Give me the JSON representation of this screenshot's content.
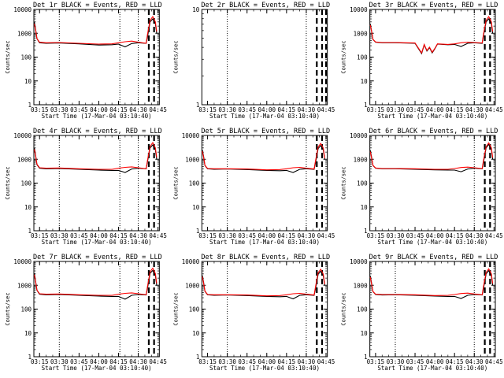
{
  "chart_data": [
    {
      "type": "line",
      "title": "Det 1r BLACK = Events, RED = LLD",
      "xlabel": "Start Time (17-Mar-04 03:10:40)",
      "ylabel": "Counts/sec",
      "yscale": "log",
      "ylim": [
        1,
        10000
      ],
      "yticks": [
        "1",
        "10",
        "100",
        "1000",
        "10000"
      ],
      "xticks": [
        "03:15",
        "03:30",
        "03:45",
        "04:00",
        "04:15",
        "04:30",
        "04:45"
      ],
      "dotted_lines": [
        "03:30",
        "04:16",
        "04:30"
      ],
      "dashed_lines": [
        "04:38",
        "04:42"
      ],
      "series": [
        {
          "color": "#000000",
          "x": [
            "03:11",
            "03:12",
            "03:13",
            "03:15",
            "03:20",
            "03:30",
            "03:45",
            "04:00",
            "04:10",
            "04:15",
            "04:20",
            "04:25",
            "04:30",
            "04:36",
            "04:37",
            "04:39",
            "04:41",
            "04:43",
            "04:44"
          ],
          "y": [
            3000,
            1500,
            600,
            400,
            380,
            390,
            360,
            320,
            330,
            350,
            270,
            370,
            400,
            380,
            700,
            3000,
            4000,
            2500,
            1000
          ]
        },
        {
          "color": "#ff0000",
          "x": [
            "03:11",
            "03:12",
            "03:13",
            "03:15",
            "03:20",
            "03:30",
            "03:45",
            "04:00",
            "04:10",
            "04:15",
            "04:20",
            "04:25",
            "04:30",
            "04:36",
            "04:37",
            "04:39",
            "04:41",
            "04:43",
            "04:44"
          ],
          "y": [
            2500,
            1400,
            600,
            420,
            400,
            410,
            380,
            350,
            360,
            400,
            440,
            470,
            420,
            380,
            900,
            3500,
            5000,
            3000,
            1200
          ]
        }
      ]
    },
    {
      "type": "line",
      "title": "Det 2r BLACK = Events, RED = LLD",
      "xlabel": "Start Time (17-Mar-04 03:10:40)",
      "ylabel": "Counts/sec",
      "yscale": "log",
      "ylim": [
        1,
        10
      ],
      "yticks": [
        "1",
        "10"
      ],
      "xticks": [
        "03:15",
        "03:30",
        "03:45",
        "04:00",
        "04:15",
        "04:30",
        "04:45"
      ],
      "dotted_lines": [
        "03:30",
        "04:30"
      ],
      "dashed_lines": [
        "04:38",
        "04:42",
        "04:45"
      ],
      "series": []
    },
    {
      "type": "line",
      "title": "Det 3r BLACK = Events, RED = LLD",
      "xlabel": "Start Time (17-Mar-04 03:10:40)",
      "ylabel": "Counts/sec",
      "yscale": "log",
      "ylim": [
        1,
        10000
      ],
      "yticks": [
        "1",
        "10",
        "100",
        "1000",
        "10000"
      ],
      "xticks": [
        "03:15",
        "03:30",
        "03:45",
        "04:00",
        "04:15",
        "04:30",
        "04:45"
      ],
      "dotted_lines": [
        "04:30"
      ],
      "dashed_lines": [
        "04:38",
        "04:42"
      ],
      "series": [
        {
          "color": "#000000",
          "x": [
            "03:11",
            "03:12",
            "03:13",
            "03:15",
            "03:20",
            "03:30",
            "03:45",
            "03:50",
            "03:52",
            "03:54",
            "03:56",
            "03:58",
            "04:00",
            "04:02",
            "04:10",
            "04:15",
            "04:20",
            "04:25",
            "04:30",
            "04:36",
            "04:37",
            "04:39",
            "04:41",
            "04:43",
            "04:44"
          ],
          "y": [
            2500,
            1200,
            550,
            420,
            400,
            400,
            380,
            140,
            330,
            180,
            250,
            150,
            220,
            350,
            330,
            340,
            280,
            380,
            400,
            380,
            800,
            3000,
            4000,
            2500,
            1000
          ]
        },
        {
          "color": "#ff0000",
          "x": [
            "03:11",
            "03:12",
            "03:13",
            "03:15",
            "03:20",
            "03:30",
            "03:45",
            "03:50",
            "03:52",
            "03:54",
            "03:56",
            "03:58",
            "04:00",
            "04:02",
            "04:10",
            "04:15",
            "04:20",
            "04:25",
            "04:30",
            "04:36",
            "04:37",
            "04:39",
            "04:41",
            "04:43",
            "04:44"
          ],
          "y": [
            2200,
            1200,
            560,
            430,
            410,
            410,
            390,
            150,
            340,
            190,
            260,
            160,
            230,
            360,
            340,
            360,
            400,
            420,
            410,
            390,
            900,
            3500,
            5000,
            3000,
            1200
          ]
        }
      ]
    },
    {
      "type": "line",
      "title": "Det 4r BLACK = Events, RED = LLD",
      "xlabel": "Start Time (17-Mar-04 03:10:40)",
      "ylabel": "Counts/sec",
      "yscale": "log",
      "ylim": [
        1,
        10000
      ],
      "yticks": [
        "1",
        "10",
        "100",
        "1000",
        "10000"
      ],
      "xticks": [
        "03:15",
        "03:30",
        "03:45",
        "04:00",
        "04:15",
        "04:30",
        "04:45"
      ],
      "dotted_lines": [
        "03:30",
        "04:16",
        "04:30"
      ],
      "dashed_lines": [
        "04:38",
        "04:42"
      ],
      "series": [
        {
          "color": "#000000",
          "x": [
            "03:11",
            "03:12",
            "03:13",
            "03:15",
            "03:20",
            "03:30",
            "03:45",
            "04:00",
            "04:10",
            "04:15",
            "04:20",
            "04:25",
            "04:30",
            "04:36",
            "04:37",
            "04:39",
            "04:41",
            "04:43",
            "04:44"
          ],
          "y": [
            3000,
            1500,
            600,
            420,
            400,
            410,
            380,
            350,
            340,
            340,
            280,
            390,
            420,
            400,
            800,
            3000,
            4000,
            2500,
            1000
          ]
        },
        {
          "color": "#ff0000",
          "x": [
            "03:11",
            "03:12",
            "03:13",
            "03:15",
            "03:20",
            "03:30",
            "03:45",
            "04:00",
            "04:10",
            "04:15",
            "04:20",
            "04:25",
            "04:30",
            "04:36",
            "04:37",
            "04:39",
            "04:41",
            "04:43",
            "04:44"
          ],
          "y": [
            2600,
            1400,
            620,
            440,
            420,
            430,
            400,
            380,
            380,
            420,
            460,
            480,
            440,
            400,
            900,
            3500,
            5000,
            3000,
            1200
          ]
        }
      ]
    },
    {
      "type": "line",
      "title": "Det 5r BLACK = Events, RED = LLD",
      "xlabel": "Start Time (17-Mar-04 03:10:40)",
      "ylabel": "Counts/sec",
      "yscale": "log",
      "ylim": [
        1,
        10000
      ],
      "yticks": [
        "1",
        "10",
        "100",
        "1000",
        "10000"
      ],
      "xticks": [
        "03:15",
        "03:30",
        "03:45",
        "04:00",
        "04:15",
        "04:30",
        "04:45"
      ],
      "dotted_lines": [
        "03:30",
        "04:30"
      ],
      "dashed_lines": [
        "04:38",
        "04:42"
      ],
      "series": [
        {
          "color": "#000000",
          "x": [
            "03:11",
            "03:12",
            "03:13",
            "03:15",
            "03:20",
            "03:30",
            "03:45",
            "04:00",
            "04:10",
            "04:15",
            "04:20",
            "04:25",
            "04:30",
            "04:36",
            "04:37",
            "04:39",
            "04:41",
            "04:43",
            "04:44"
          ],
          "y": [
            2500,
            1300,
            550,
            400,
            380,
            390,
            370,
            340,
            330,
            340,
            280,
            380,
            400,
            380,
            700,
            2800,
            3800,
            2400,
            1000
          ]
        },
        {
          "color": "#ff0000",
          "x": [
            "03:11",
            "03:12",
            "03:13",
            "03:15",
            "03:20",
            "03:30",
            "03:45",
            "04:00",
            "04:10",
            "04:15",
            "04:20",
            "04:25",
            "04:30",
            "04:36",
            "04:37",
            "04:39",
            "04:41",
            "04:43",
            "04:44"
          ],
          "y": [
            2200,
            1200,
            560,
            410,
            400,
            400,
            390,
            360,
            370,
            400,
            440,
            460,
            420,
            390,
            850,
            3300,
            4600,
            2900,
            1100
          ]
        }
      ]
    },
    {
      "type": "line",
      "title": "Det 6r BLACK = Events, RED = LLD",
      "xlabel": "Start Time (17-Mar-04 03:10:40)",
      "ylabel": "Counts/sec",
      "yscale": "log",
      "ylim": [
        1,
        10000
      ],
      "yticks": [
        "1",
        "10",
        "100",
        "1000",
        "10000"
      ],
      "xticks": [
        "03:15",
        "03:30",
        "03:45",
        "04:00",
        "04:15",
        "04:30",
        "04:45"
      ],
      "dotted_lines": [
        "04:30"
      ],
      "dashed_lines": [
        "04:38",
        "04:42"
      ],
      "series": [
        {
          "color": "#000000",
          "x": [
            "03:11",
            "03:12",
            "03:13",
            "03:15",
            "03:20",
            "03:30",
            "03:45",
            "04:00",
            "04:10",
            "04:15",
            "04:20",
            "04:25",
            "04:30",
            "04:36",
            "04:37",
            "04:39",
            "04:41",
            "04:43",
            "04:44"
          ],
          "y": [
            2400,
            1200,
            550,
            420,
            400,
            400,
            380,
            360,
            350,
            350,
            300,
            390,
            420,
            400,
            750,
            3000,
            4200,
            2600,
            1000
          ]
        },
        {
          "color": "#ff0000",
          "x": [
            "03:11",
            "03:12",
            "03:13",
            "03:15",
            "03:20",
            "03:30",
            "03:45",
            "04:00",
            "04:10",
            "04:15",
            "04:20",
            "04:25",
            "04:30",
            "04:36",
            "04:37",
            "04:39",
            "04:41",
            "04:43",
            "04:44"
          ],
          "y": [
            2100,
            1100,
            560,
            430,
            410,
            410,
            400,
            380,
            380,
            410,
            450,
            470,
            440,
            410,
            880,
            3400,
            4900,
            3000,
            1200
          ]
        }
      ]
    },
    {
      "type": "line",
      "title": "Det 7r BLACK = Events, RED = LLD",
      "xlabel": "Start Time (17-Mar-04 03:10:40)",
      "ylabel": "Counts/sec",
      "yscale": "log",
      "ylim": [
        1,
        10000
      ],
      "yticks": [
        "1",
        "10",
        "100",
        "1000",
        "10000"
      ],
      "xticks": [
        "03:15",
        "03:30",
        "03:45",
        "04:00",
        "04:15",
        "04:30",
        "04:45"
      ],
      "dotted_lines": [
        "03:30",
        "04:16",
        "04:30"
      ],
      "dashed_lines": [
        "04:38",
        "04:42"
      ],
      "series": [
        {
          "color": "#000000",
          "x": [
            "03:11",
            "03:12",
            "03:13",
            "03:15",
            "03:20",
            "03:30",
            "03:45",
            "04:00",
            "04:10",
            "04:15",
            "04:20",
            "04:25",
            "04:30",
            "04:36",
            "04:37",
            "04:39",
            "04:41",
            "04:43",
            "04:44"
          ],
          "y": [
            3200,
            1500,
            620,
            420,
            400,
            410,
            380,
            350,
            340,
            340,
            260,
            380,
            410,
            390,
            750,
            3200,
            4200,
            2600,
            1000
          ]
        },
        {
          "color": "#ff0000",
          "x": [
            "03:11",
            "03:12",
            "03:13",
            "03:15",
            "03:20",
            "03:30",
            "03:45",
            "04:00",
            "04:10",
            "04:15",
            "04:20",
            "04:25",
            "04:30",
            "04:36",
            "04:37",
            "04:39",
            "04:41",
            "04:43",
            "04:44"
          ],
          "y": [
            2800,
            1400,
            630,
            440,
            420,
            430,
            400,
            380,
            380,
            420,
            460,
            480,
            440,
            400,
            900,
            3700,
            5200,
            3100,
            1200
          ]
        }
      ]
    },
    {
      "type": "line",
      "title": "Det 8r BLACK = Events, RED = LLD",
      "xlabel": "Start Time (17-Mar-04 03:10:40)",
      "ylabel": "Counts/sec",
      "yscale": "log",
      "ylim": [
        1,
        10000
      ],
      "yticks": [
        "1",
        "10",
        "100",
        "1000",
        "10000"
      ],
      "xticks": [
        "03:15",
        "03:30",
        "03:45",
        "04:00",
        "04:15",
        "04:30",
        "04:45"
      ],
      "dotted_lines": [
        "03:30",
        "04:30"
      ],
      "dashed_lines": [
        "04:38",
        "04:42"
      ],
      "series": [
        {
          "color": "#000000",
          "x": [
            "03:11",
            "03:12",
            "03:13",
            "03:15",
            "03:20",
            "03:30",
            "03:45",
            "04:00",
            "04:10",
            "04:15",
            "04:20",
            "04:25",
            "04:30",
            "04:36",
            "04:37",
            "04:39",
            "04:41",
            "04:43",
            "04:44"
          ],
          "y": [
            2600,
            1300,
            560,
            400,
            380,
            390,
            370,
            340,
            330,
            340,
            270,
            380,
            400,
            380,
            700,
            2900,
            3900,
            2400,
            1000
          ]
        },
        {
          "color": "#ff0000",
          "x": [
            "03:11",
            "03:12",
            "03:13",
            "03:15",
            "03:20",
            "03:30",
            "03:45",
            "04:00",
            "04:10",
            "04:15",
            "04:20",
            "04:25",
            "04:30",
            "04:36",
            "04:37",
            "04:39",
            "04:41",
            "04:43",
            "04:44"
          ],
          "y": [
            2300,
            1200,
            570,
            410,
            400,
            400,
            390,
            360,
            370,
            400,
            440,
            460,
            420,
            390,
            850,
            3400,
            4700,
            2900,
            1100
          ]
        }
      ]
    },
    {
      "type": "line",
      "title": "Det 9r BLACK = Events, RED = LLD",
      "xlabel": "Start Time (17-Mar-04 03:10:40)",
      "ylabel": "Counts/sec",
      "yscale": "log",
      "ylim": [
        1,
        10000
      ],
      "yticks": [
        "1",
        "10",
        "100",
        "1000",
        "10000"
      ],
      "xticks": [
        "03:15",
        "03:30",
        "03:45",
        "04:00",
        "04:15",
        "04:30",
        "04:45"
      ],
      "dotted_lines": [
        "03:30",
        "04:30"
      ],
      "dashed_lines": [
        "04:38",
        "04:42"
      ],
      "series": [
        {
          "color": "#000000",
          "x": [
            "03:11",
            "03:12",
            "03:13",
            "03:15",
            "03:20",
            "03:30",
            "03:45",
            "04:00",
            "04:10",
            "04:15",
            "04:20",
            "04:25",
            "04:30",
            "04:36",
            "04:37",
            "04:39",
            "04:41",
            "04:43",
            "04:44"
          ],
          "y": [
            2500,
            1200,
            540,
            410,
            390,
            400,
            380,
            350,
            340,
            340,
            280,
            380,
            410,
            390,
            720,
            3000,
            4100,
            2500,
            1000
          ]
        },
        {
          "color": "#ff0000",
          "x": [
            "03:11",
            "03:12",
            "03:13",
            "03:15",
            "03:20",
            "03:30",
            "03:45",
            "04:00",
            "04:10",
            "04:15",
            "04:20",
            "04:25",
            "04:30",
            "04:36",
            "04:37",
            "04:39",
            "04:41",
            "04:43",
            "04:44"
          ],
          "y": [
            2200,
            1100,
            550,
            420,
            410,
            410,
            400,
            370,
            380,
            410,
            450,
            470,
            430,
            400,
            870,
            3500,
            4900,
            3000,
            1200
          ]
        }
      ]
    }
  ]
}
